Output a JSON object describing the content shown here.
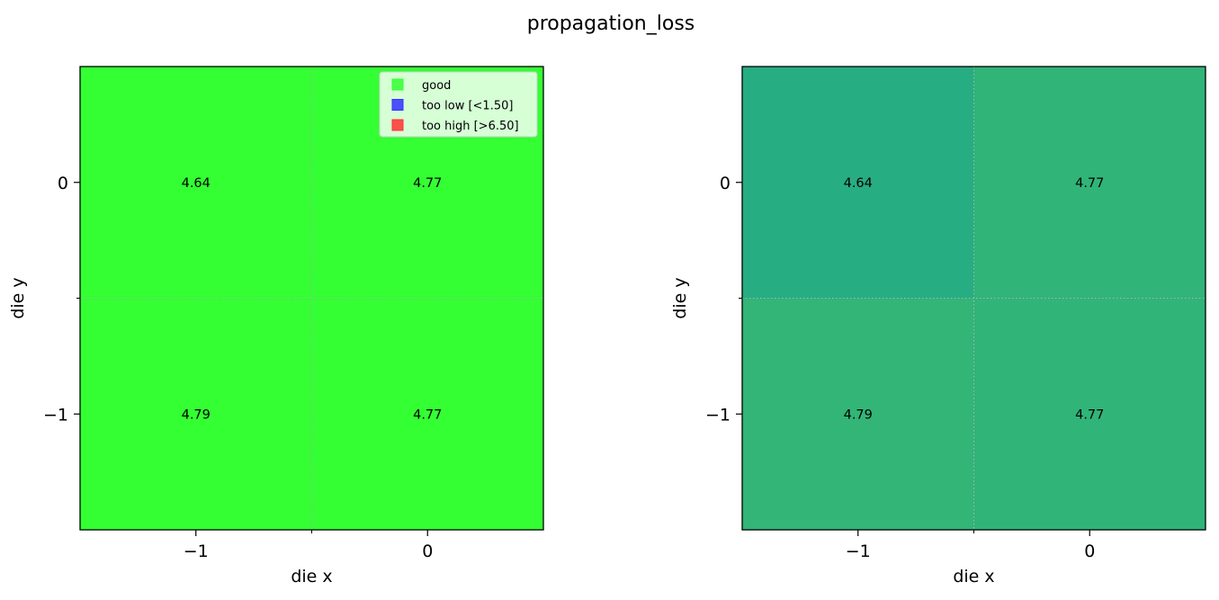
{
  "title": "propagation_loss",
  "chart_data": [
    {
      "type": "heatmap",
      "xlabel": "die x",
      "ylabel": "die y",
      "x_ticks": [
        -1,
        0
      ],
      "y_ticks": [
        0,
        -1
      ],
      "x_tick_labels": [
        "−1",
        "0"
      ],
      "y_tick_labels": [
        "0",
        "−1"
      ],
      "xlim": [
        -1.5,
        0.5
      ],
      "ylim": [
        -1.5,
        0.5
      ],
      "cells": [
        {
          "x": -1,
          "y": 0,
          "value": 4.64,
          "label": "4.64",
          "color": "#33ff33"
        },
        {
          "x": 0,
          "y": 0,
          "value": 4.77,
          "label": "4.77",
          "color": "#33ff33"
        },
        {
          "x": -1,
          "y": -1,
          "value": 4.79,
          "label": "4.79",
          "color": "#33ff33"
        },
        {
          "x": 0,
          "y": -1,
          "value": 4.77,
          "label": "4.77",
          "color": "#33ff33"
        }
      ],
      "grid": "minor-dotted",
      "legend": {
        "placement": "top-right",
        "entries": [
          {
            "label": "good",
            "color": "#33ff33"
          },
          {
            "label": "too low [<1.50]",
            "color": "#3333ff"
          },
          {
            "label": "too high [>6.50]",
            "color": "#ff3333"
          }
        ]
      }
    },
    {
      "type": "heatmap",
      "xlabel": "die x",
      "ylabel": "die y",
      "x_ticks": [
        -1,
        0
      ],
      "y_ticks": [
        0,
        -1
      ],
      "x_tick_labels": [
        "−1",
        "0"
      ],
      "y_tick_labels": [
        "0",
        "−1"
      ],
      "xlim": [
        -1.5,
        0.5
      ],
      "ylim": [
        -1.5,
        0.5
      ],
      "cells": [
        {
          "x": -1,
          "y": 0,
          "value": 4.64,
          "label": "4.64",
          "color": "#27ad82"
        },
        {
          "x": 0,
          "y": 0,
          "value": 4.77,
          "label": "4.77",
          "color": "#31b478"
        },
        {
          "x": -1,
          "y": -1,
          "value": 4.79,
          "label": "4.79",
          "color": "#32b577"
        },
        {
          "x": 0,
          "y": -1,
          "value": 4.77,
          "label": "4.77",
          "color": "#31b478"
        }
      ],
      "grid": "minor-dotted"
    }
  ]
}
